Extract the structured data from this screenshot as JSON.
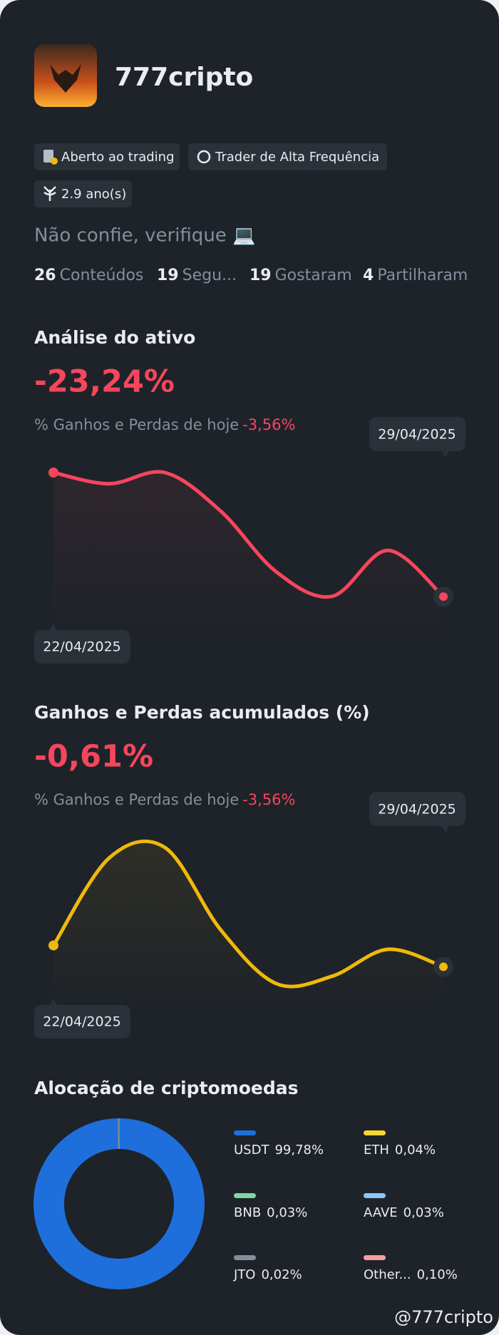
{
  "profile": {
    "name": "777cripto",
    "badges": [
      "Aberto ao trading",
      "Trader de Alta Frequência",
      "2.9 ano(s)"
    ],
    "bio": "Não confie, verifique 💻",
    "stats": [
      {
        "count": 26,
        "label": "Conteúdos"
      },
      {
        "count": 19,
        "label": "Segu..."
      },
      {
        "count": 19,
        "label": "Gostaram"
      },
      {
        "count": 4,
        "label": "Partilharam"
      }
    ]
  },
  "chart_data": [
    {
      "type": "line",
      "title": "Análise do ativo",
      "headline": "-23,24%",
      "today_label": "% Ganhos e Perdas de hoje",
      "today_value": "-3,56%",
      "categories": [
        "22/04/2025",
        null,
        null,
        null,
        null,
        null,
        null,
        "29/04/2025"
      ],
      "values": [
        0,
        -2.1,
        0,
        -7.2,
        -18.6,
        -23.2,
        -14.6,
        -23.24
      ],
      "color": "#f6465d"
    },
    {
      "type": "line",
      "title": "Ganhos e Perdas acumulados (%)",
      "headline": "-0,61%",
      "today_label": "% Ganhos e Perdas de hoje",
      "today_value": "-3,56%",
      "categories": [
        "22/04/2025",
        null,
        null,
        null,
        null,
        null,
        null,
        "29/04/2025"
      ],
      "values": [
        0,
        2.5,
        2.8,
        0.45,
        -1.09,
        -0.88,
        -0.11,
        -0.61
      ],
      "color": "#f0b90b"
    },
    {
      "type": "donut",
      "title": "Alocação de criptomoedas",
      "categories": [
        "USDT",
        "ETH",
        "BNB",
        "AAVE",
        "JTO",
        "Other..."
      ],
      "values": [
        99.78,
        0.04,
        0.03,
        0.03,
        0.02,
        0.1
      ],
      "value_labels": [
        "99,78%",
        "0,04%",
        "0,03%",
        "0,03%",
        "0,02%",
        "0,10%"
      ],
      "colors": [
        "#1e6fdc",
        "#fcd535",
        "#7ed7a9",
        "#8ec5ff",
        "#848e9c",
        "#f5a0a0"
      ]
    }
  ],
  "watermark": "@777cripto"
}
